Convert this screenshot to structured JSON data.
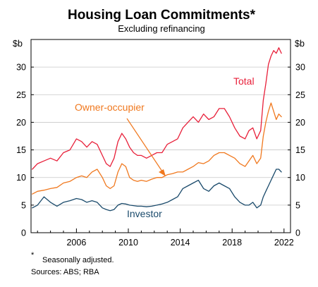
{
  "chart_data": {
    "type": "line",
    "title": "Housing Loan Commitments*",
    "subtitle": "Excluding refinancing",
    "ylabel_left": "$b",
    "ylabel_right": "$b",
    "ylim": [
      0,
      35
    ],
    "yticks": [
      0,
      5,
      10,
      15,
      20,
      25,
      30
    ],
    "xlim": [
      2002.5,
      2022.5
    ],
    "xticks": [
      2006,
      2010,
      2014,
      2018,
      2022
    ],
    "grid": true,
    "footnote_marker": "*",
    "footnote": "Seasonally adjusted.",
    "sources": "Sources: ABS; RBA",
    "series": [
      {
        "name": "Total",
        "color": "#e8203a",
        "x": [
          2002.6,
          2003.0,
          2003.5,
          2004.0,
          2004.5,
          2005.0,
          2005.5,
          2006.0,
          2006.4,
          2006.8,
          2007.2,
          2007.6,
          2008.0,
          2008.3,
          2008.6,
          2008.9,
          2009.2,
          2009.5,
          2009.8,
          2010.1,
          2010.4,
          2010.7,
          2011.0,
          2011.4,
          2011.8,
          2012.2,
          2012.6,
          2013.0,
          2013.4,
          2013.8,
          2014.2,
          2014.6,
          2015.0,
          2015.4,
          2015.8,
          2016.2,
          2016.6,
          2017.0,
          2017.4,
          2017.8,
          2018.2,
          2018.6,
          2019.0,
          2019.3,
          2019.6,
          2019.9,
          2020.2,
          2020.4,
          2020.6,
          2020.8,
          2021.0,
          2021.2,
          2021.4,
          2021.6,
          2021.8
        ],
        "values": [
          11.5,
          12.5,
          13.0,
          13.5,
          13.0,
          14.5,
          15.0,
          17.0,
          16.5,
          15.5,
          16.5,
          16.0,
          14.0,
          12.5,
          12.0,
          13.5,
          16.5,
          18.0,
          17.0,
          15.5,
          14.5,
          14.0,
          14.0,
          13.5,
          14.0,
          14.5,
          14.5,
          16.0,
          16.5,
          17.0,
          19.0,
          20.0,
          21.0,
          20.0,
          21.5,
          20.5,
          21.0,
          22.5,
          22.5,
          21.0,
          19.0,
          17.5,
          17.0,
          18.5,
          19.0,
          17.0,
          18.5,
          24.0,
          27.0,
          30.5,
          32.0,
          33.0,
          32.5,
          33.5,
          32.5
        ]
      },
      {
        "name": "Owner-occupier",
        "color": "#f0781e",
        "x": [
          2002.6,
          2003.0,
          2003.5,
          2004.0,
          2004.5,
          2005.0,
          2005.5,
          2006.0,
          2006.4,
          2006.8,
          2007.2,
          2007.6,
          2008.0,
          2008.3,
          2008.6,
          2008.9,
          2009.2,
          2009.5,
          2009.8,
          2010.1,
          2010.4,
          2010.7,
          2011.0,
          2011.4,
          2011.8,
          2012.2,
          2012.6,
          2013.0,
          2013.4,
          2013.8,
          2014.2,
          2014.6,
          2015.0,
          2015.4,
          2015.8,
          2016.2,
          2016.6,
          2017.0,
          2017.4,
          2017.8,
          2018.2,
          2018.6,
          2019.0,
          2019.3,
          2019.6,
          2019.9,
          2020.2,
          2020.4,
          2020.6,
          2020.8,
          2021.0,
          2021.2,
          2021.4,
          2021.6,
          2021.8
        ],
        "values": [
          7.0,
          7.5,
          7.7,
          8.0,
          8.2,
          9.0,
          9.3,
          10.0,
          10.3,
          10.0,
          11.0,
          11.5,
          10.0,
          8.5,
          8.0,
          8.5,
          11.0,
          12.5,
          12.0,
          10.0,
          9.5,
          9.3,
          9.5,
          9.3,
          9.7,
          10.0,
          10.0,
          10.5,
          10.7,
          11.0,
          11.0,
          11.5,
          12.0,
          12.7,
          12.5,
          13.0,
          14.0,
          14.5,
          14.5,
          14.0,
          13.5,
          12.5,
          12.0,
          13.0,
          14.0,
          12.5,
          13.5,
          17.5,
          20.0,
          22.0,
          23.5,
          22.0,
          20.5,
          21.5,
          21.0
        ]
      },
      {
        "name": "Investor",
        "color": "#1a4a6b",
        "x": [
          2002.6,
          2003.0,
          2003.5,
          2004.0,
          2004.5,
          2005.0,
          2005.5,
          2006.0,
          2006.4,
          2006.8,
          2007.2,
          2007.6,
          2008.0,
          2008.3,
          2008.6,
          2008.9,
          2009.2,
          2009.5,
          2009.8,
          2010.1,
          2010.4,
          2010.7,
          2011.0,
          2011.4,
          2011.8,
          2012.2,
          2012.6,
          2013.0,
          2013.4,
          2013.8,
          2014.2,
          2014.6,
          2015.0,
          2015.4,
          2015.8,
          2016.2,
          2016.6,
          2017.0,
          2017.4,
          2017.8,
          2018.2,
          2018.6,
          2019.0,
          2019.3,
          2019.6,
          2019.9,
          2020.2,
          2020.4,
          2020.6,
          2020.8,
          2021.0,
          2021.2,
          2021.4,
          2021.6,
          2021.8
        ],
        "values": [
          4.5,
          5.0,
          6.5,
          5.5,
          4.8,
          5.5,
          5.8,
          6.2,
          6.0,
          5.5,
          5.8,
          5.5,
          4.5,
          4.2,
          4.0,
          4.2,
          5.0,
          5.3,
          5.2,
          5.0,
          4.9,
          4.8,
          4.8,
          4.7,
          4.8,
          5.0,
          5.2,
          5.5,
          6.0,
          6.5,
          8.0,
          8.5,
          9.0,
          9.5,
          8.0,
          7.5,
          8.5,
          9.0,
          8.5,
          8.0,
          6.5,
          5.5,
          5.0,
          5.0,
          5.5,
          4.5,
          5.0,
          6.5,
          7.5,
          8.5,
          9.5,
          10.5,
          11.5,
          11.5,
          11.0
        ]
      }
    ],
    "annotations": {
      "total": "Total",
      "owner_occupier": "Owner-occupier",
      "investor": "Investor"
    }
  }
}
